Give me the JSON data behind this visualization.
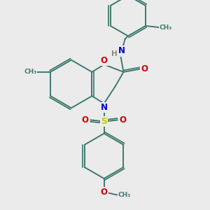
{
  "bg_color": "#ebebeb",
  "bond_color": "#3d7a6e",
  "bond_lw": 1.4,
  "atom_colors": {
    "O": "#cc0000",
    "N": "#0000cc",
    "S": "#cccc00",
    "H": "#888888",
    "C": "#3d7a6e"
  },
  "figsize": [
    3.0,
    3.0
  ],
  "dpi": 100,
  "xlim": [
    20,
    280
  ],
  "ylim": [
    10,
    290
  ]
}
